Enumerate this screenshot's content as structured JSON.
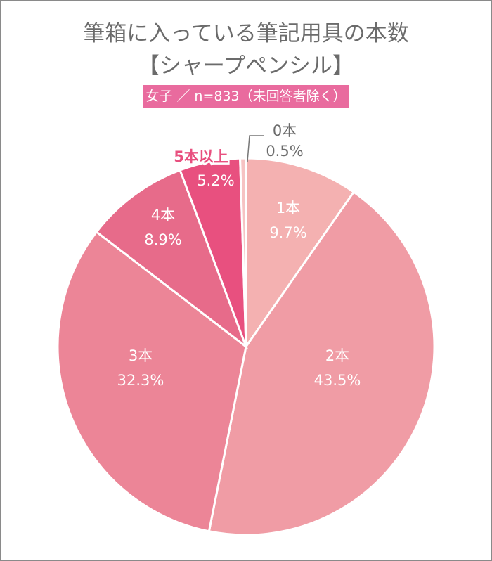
{
  "title": {
    "line1": "筆箱に入っている筆記用具の本数",
    "line2": "【シャープペンシル】"
  },
  "banner": "女子 ／ n=833（未回答者除く）",
  "chart_data": {
    "type": "pie",
    "start": "top",
    "direction": "clockwise",
    "slices": [
      {
        "label": "1本",
        "value": 9.7,
        "value_label": "9.7%",
        "color": "#f4b1b1"
      },
      {
        "label": "2本",
        "value": 43.5,
        "value_label": "43.5%",
        "color": "#f09ca5"
      },
      {
        "label": "3本",
        "value": 32.3,
        "value_label": "32.3%",
        "color": "#ec8597"
      },
      {
        "label": "4本",
        "value": 8.9,
        "value_label": "8.9%",
        "color": "#e76b8a"
      },
      {
        "label": "5本以上",
        "value": 5.2,
        "value_label": "5.2%",
        "color": "#e8507f"
      },
      {
        "label": "0本",
        "value": 0.5,
        "value_label": "0.5%",
        "color": "#f6c3c3"
      }
    ]
  }
}
